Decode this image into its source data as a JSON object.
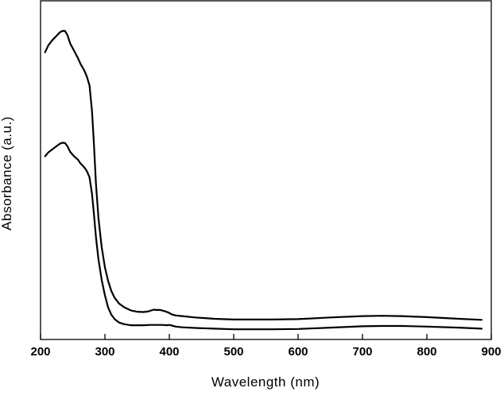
{
  "chart_data": {
    "type": "line",
    "xlabel": "Wavelength (nm)",
    "ylabel": "Absorbance (a.u.)",
    "xlim": [
      200,
      900
    ],
    "ylim": [
      0,
      1
    ],
    "xticks": [
      200,
      300,
      400,
      500,
      600,
      700,
      800,
      900
    ],
    "y_tick_labels_shown": false,
    "grid": false,
    "legend": "none",
    "series": [
      {
        "x": [
          207,
          212,
          218,
          225,
          230,
          234,
          238,
          242,
          246,
          252,
          258,
          262,
          268,
          272,
          276,
          280,
          283,
          286,
          290,
          295,
          300,
          305,
          310,
          315,
          322,
          330,
          340,
          350,
          360,
          368,
          372,
          376,
          380,
          386,
          392,
          398,
          404,
          410,
          420,
          440,
          470,
          500,
          530,
          560,
          600,
          650,
          700,
          730,
          760,
          800,
          850,
          885
        ],
        "y": [
          0.848,
          0.868,
          0.883,
          0.897,
          0.907,
          0.911,
          0.911,
          0.898,
          0.874,
          0.853,
          0.831,
          0.814,
          0.794,
          0.776,
          0.75,
          0.672,
          0.575,
          0.46,
          0.357,
          0.273,
          0.213,
          0.172,
          0.143,
          0.123,
          0.106,
          0.095,
          0.086,
          0.082,
          0.081,
          0.083,
          0.086,
          0.088,
          0.087,
          0.087,
          0.084,
          0.08,
          0.074,
          0.071,
          0.069,
          0.065,
          0.061,
          0.059,
          0.059,
          0.059,
          0.06,
          0.065,
          0.069,
          0.07,
          0.069,
          0.066,
          0.061,
          0.058
        ]
      },
      {
        "x": [
          207,
          212,
          218,
          225,
          230,
          234,
          238,
          242,
          246,
          252,
          258,
          262,
          268,
          272,
          276,
          280,
          283,
          286,
          290,
          295,
          300,
          305,
          310,
          315,
          322,
          330,
          340,
          350,
          360,
          370,
          380,
          390,
          396,
          400,
          404,
          410,
          420,
          440,
          470,
          500,
          530,
          560,
          600,
          650,
          700,
          730,
          760,
          800,
          850,
          885
        ],
        "y": [
          0.541,
          0.552,
          0.561,
          0.571,
          0.578,
          0.581,
          0.58,
          0.57,
          0.554,
          0.541,
          0.531,
          0.52,
          0.508,
          0.497,
          0.479,
          0.429,
          0.369,
          0.302,
          0.236,
          0.176,
          0.13,
          0.094,
          0.073,
          0.06,
          0.05,
          0.045,
          0.042,
          0.042,
          0.042,
          0.043,
          0.043,
          0.043,
          0.042,
          0.043,
          0.041,
          0.038,
          0.036,
          0.034,
          0.032,
          0.03,
          0.03,
          0.03,
          0.031,
          0.035,
          0.039,
          0.04,
          0.04,
          0.038,
          0.035,
          0.032
        ]
      }
    ]
  }
}
